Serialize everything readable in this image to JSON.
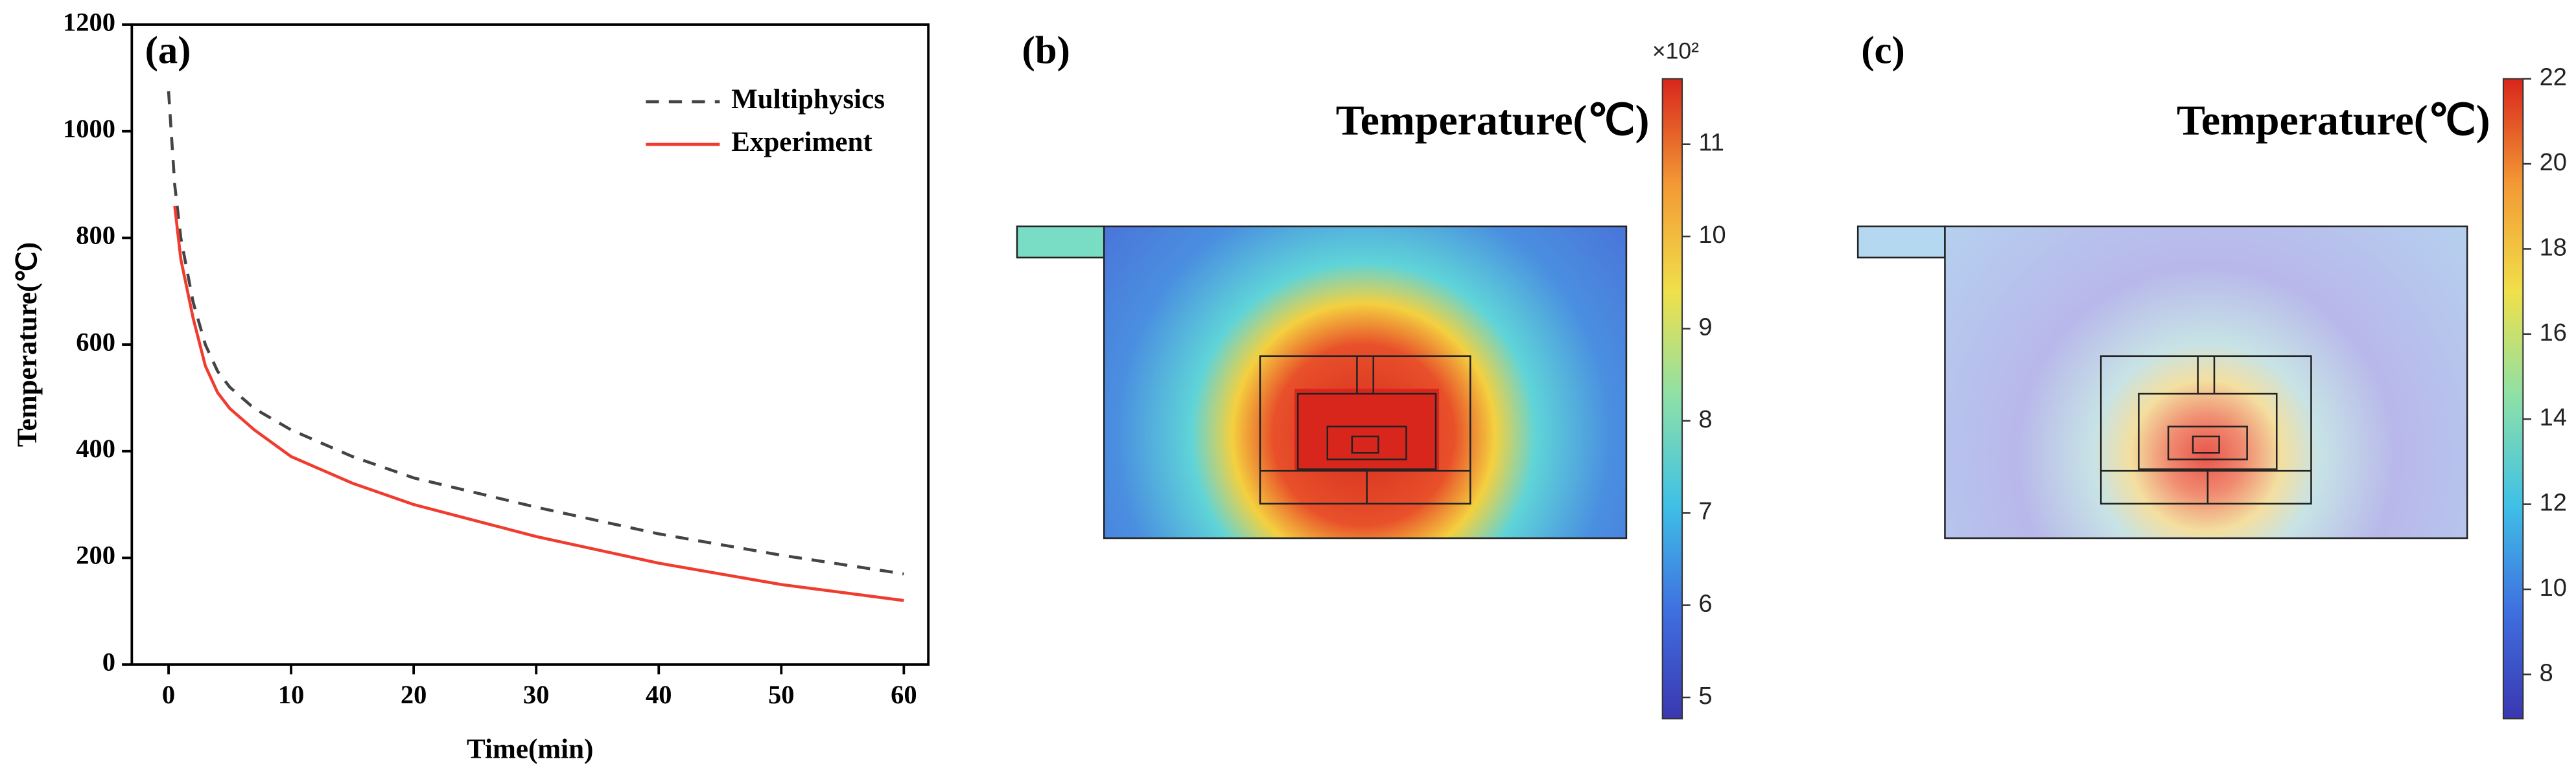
{
  "chart_data": [
    {
      "type": "line",
      "panel_label": "(a)",
      "xlabel": "Time(min)",
      "ylabel": "Temperature(℃)",
      "x": [
        0,
        0.5,
        1,
        2,
        3,
        4,
        5,
        7,
        10,
        15,
        20,
        30,
        40,
        50,
        60
      ],
      "series": [
        {
          "name": "Multiphysics",
          "color": "#444444",
          "dash": true,
          "values": [
            1075,
            900,
            800,
            680,
            600,
            550,
            520,
            480,
            440,
            390,
            350,
            295,
            245,
            205,
            170
          ]
        },
        {
          "name": "Experiment",
          "color": "#f03c2e",
          "dash": false,
          "values": [
            null,
            860,
            760,
            650,
            560,
            510,
            480,
            440,
            390,
            340,
            300,
            240,
            190,
            150,
            120
          ]
        }
      ],
      "xlim": [
        -3,
        62
      ],
      "ylim": [
        0,
        1200
      ],
      "xticks": [
        0,
        10,
        20,
        30,
        40,
        50,
        60
      ],
      "yticks": [
        0,
        200,
        400,
        600,
        800,
        1000,
        1200
      ],
      "legend": "upper right"
    },
    {
      "type": "heatmap",
      "panel_label": "(b)",
      "title": "Temperature(℃)",
      "colorbar_multiplier": "×10²",
      "clim": [
        4.77,
        11.71
      ],
      "cticks": [
        5,
        6,
        7,
        8,
        9,
        10,
        11
      ],
      "colors": [
        "#3a37b0",
        "#3f6fe0",
        "#3fc0e6",
        "#8be0a8",
        "#f0e04a",
        "#f39a35",
        "#d8261c"
      ]
    },
    {
      "type": "heatmap",
      "panel_label": "(c)",
      "title": "Temperature(℃)",
      "clim": [
        6.96,
        22.0
      ],
      "cticks": [
        8,
        10,
        12,
        14,
        16,
        18,
        20,
        22
      ],
      "colors": [
        "#3a37b0",
        "#3f6fe0",
        "#3fc0e6",
        "#8be0a8",
        "#f0e04a",
        "#f39a35",
        "#d8261c"
      ]
    }
  ]
}
